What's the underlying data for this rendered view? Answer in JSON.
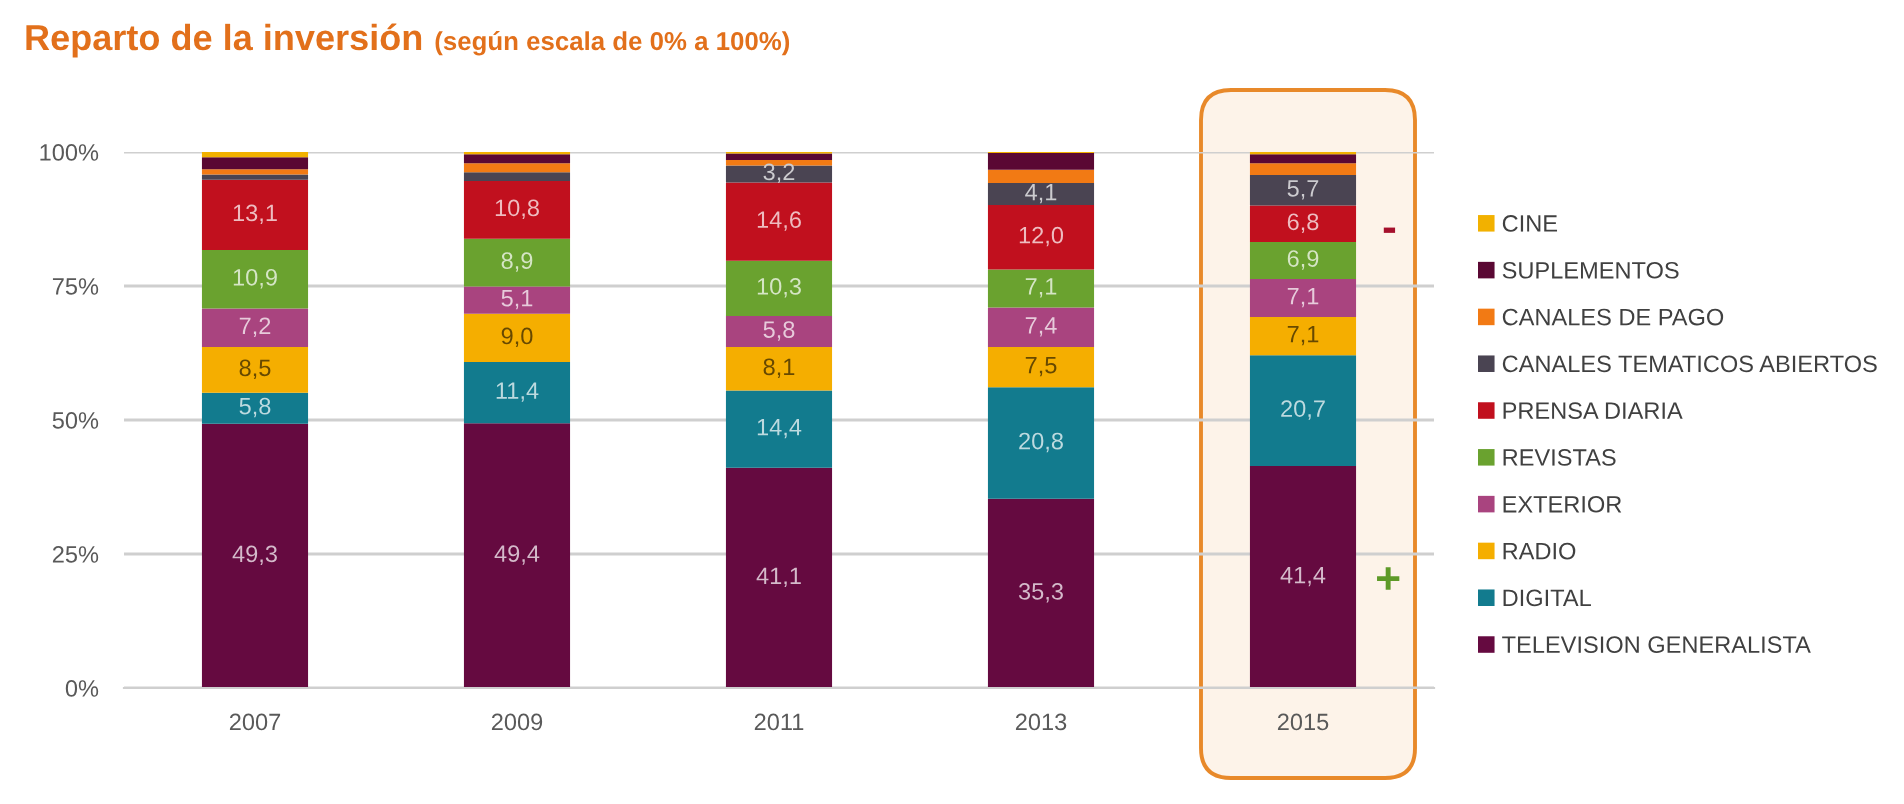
{
  "chart_data": {
    "type": "bar",
    "stacked": true,
    "title": "Reparto de la inversión",
    "subtitle": "(según escala de 0% a 100%)",
    "categories": [
      "2007",
      "2009",
      "2011",
      "2013",
      "2015"
    ],
    "ylim": [
      0,
      100
    ],
    "yticks": [
      {
        "value": 0,
        "label": "0%"
      },
      {
        "value": 25,
        "label": "25%"
      },
      {
        "value": 50,
        "label": "50%"
      },
      {
        "value": 75,
        "label": "75%"
      },
      {
        "value": 100,
        "label": "100%"
      }
    ],
    "grid": "y",
    "legend": "right",
    "series": [
      {
        "name": "TELEVISION GENERALISTA",
        "color": "#650a40",
        "values": [
          49.3,
          49.4,
          41.1,
          35.3,
          41.4
        ],
        "value_labels": [
          "49,3",
          "49,4",
          "41,1",
          "35,3",
          "41,4"
        ]
      },
      {
        "name": "DIGITAL",
        "color": "#127b8e",
        "values": [
          5.8,
          11.4,
          14.4,
          20.8,
          20.7
        ],
        "value_labels": [
          "5,8",
          "11,4",
          "14,4",
          "20,8",
          "20,7"
        ]
      },
      {
        "name": "RADIO",
        "color": "#f5ae00",
        "values": [
          8.5,
          9.0,
          8.1,
          7.5,
          7.1
        ],
        "value_labels": [
          "8,5",
          "9,0",
          "8,1",
          "7,5",
          "7,1"
        ]
      },
      {
        "name": "EXTERIOR",
        "color": "#a9447f",
        "values": [
          7.2,
          5.1,
          5.8,
          7.4,
          7.1
        ],
        "value_labels": [
          "7,2",
          "5,1",
          "5,8",
          "7,4",
          "7,1"
        ]
      },
      {
        "name": "REVISTAS",
        "color": "#6aa22f",
        "values": [
          10.9,
          8.9,
          10.3,
          7.1,
          6.9
        ],
        "value_labels": [
          "10,9",
          "8,9",
          "10,3",
          "7,1",
          "6,9"
        ]
      },
      {
        "name": "PRENSA DIARIA",
        "color": "#c1101e",
        "values": [
          13.1,
          10.8,
          14.6,
          12.0,
          6.8
        ],
        "value_labels": [
          "13,1",
          "10,8",
          "14,6",
          "12,0",
          "6,8"
        ]
      },
      {
        "name": "CANALES TEMATICOS ABIERTOS",
        "color": "#4a4452",
        "values": [
          1.0,
          1.6,
          3.2,
          4.1,
          5.7
        ],
        "value_labels": [
          null,
          null,
          "3,2",
          "4,1",
          "5,7"
        ]
      },
      {
        "name": "CANALES DE PAGO",
        "color": "#f27a14",
        "values": [
          1.0,
          1.7,
          1.0,
          2.5,
          2.2
        ]
      },
      {
        "name": "SUPLEMENTOS",
        "color": "#5a0833",
        "values": [
          2.2,
          1.7,
          1.2,
          3.1,
          1.7
        ]
      },
      {
        "name": "CINE",
        "color": "#f2b100",
        "values": [
          1.0,
          0.4,
          0.3,
          0.2,
          0.4
        ]
      }
    ],
    "bands": [
      {
        "axis": "x",
        "from": "2015",
        "to": "2015",
        "color": "#e8892a"
      }
    ],
    "annotations": [
      "-",
      "+"
    ]
  }
}
